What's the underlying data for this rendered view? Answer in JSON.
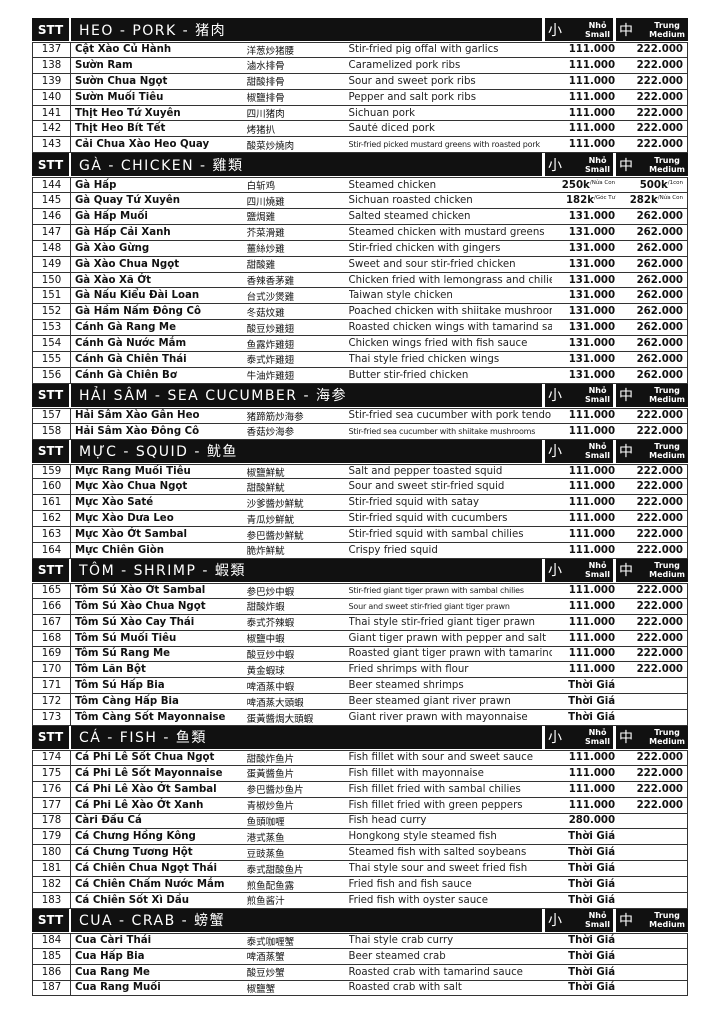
{
  "size_labels": {
    "small_cjk": "小",
    "small_vi": "Nhỏ",
    "small_en": "Small",
    "medium_cjk": "中",
    "medium_vi": "Trung",
    "medium_en": "Medium",
    "stt": "STT"
  },
  "sections": [
    {
      "title": "HEO - PORK - 猪肉",
      "rows": [
        [
          "137",
          "Cật Xào Củ Hành",
          "洋葱炒猪腰",
          "Stir-fried pig offal with garlics",
          "111.000",
          "222.000"
        ],
        [
          "138",
          "Sườn Ram",
          "滷水排骨",
          "Caramelized pork ribs",
          "111.000",
          "222.000"
        ],
        [
          "139",
          "Sườn Chua Ngọt",
          "甜酸排骨",
          "Sour and sweet pork ribs",
          "111.000",
          "222.000"
        ],
        [
          "140",
          "Sườn Muối Tiêu",
          "椒鹽排骨",
          "Pepper and salt pork ribs",
          "111.000",
          "222.000"
        ],
        [
          "141",
          "Thịt Heo Tứ Xuyên",
          "四川猪肉",
          "Sichuan pork",
          "111.000",
          "222.000"
        ],
        [
          "142",
          "Thịt Heo Bít Tết",
          "烤猪扒",
          "Sauté diced pork",
          "111.000",
          "222.000"
        ],
        [
          "143",
          "Cải Chua Xào Heo Quay",
          "酸菜炒燒肉",
          "Stir-fried picked mustard greens with roasted pork",
          "111.000",
          "222.000"
        ]
      ]
    },
    {
      "title": "GÀ - CHICKEN - 雞類",
      "rows": [
        [
          "144",
          "Gà Hấp",
          "白斩鸡",
          "Steamed chicken",
          "250k",
          "500k",
          "/Nửa Con",
          "/1con"
        ],
        [
          "145",
          "Gà Quay Tứ Xuyên",
          "四川燒雞",
          "Sichuan roasted chicken",
          "182k",
          "282k",
          "/Góc Tư",
          "/Nửa Con"
        ],
        [
          "146",
          "Gà Hấp Muối",
          "鹽焗雞",
          "Salted steamed chicken",
          "131.000",
          "262.000"
        ],
        [
          "147",
          "Gà Hấp Cải Xanh",
          "芥菜滑雞",
          "Steamed chicken with mustard greens",
          "131.000",
          "262.000"
        ],
        [
          "148",
          "Gà Xào Gừng",
          "薑絲炒雞",
          "Stir-fried chicken with gingers",
          "131.000",
          "262.000"
        ],
        [
          "149",
          "Gà Xào Chua Ngọt",
          "甜酸雞",
          "Sweet and sour stir-fried chicken",
          "131.000",
          "262.000"
        ],
        [
          "150",
          "Gà Xào Xã Ớt",
          "香辣香茅雞",
          "Chicken fried with lemongrass and chilies",
          "131.000",
          "262.000"
        ],
        [
          "151",
          "Gà Nấu Kiểu Đài Loan",
          "台式沙煲雞",
          "Taiwan style chicken",
          "131.000",
          "262.000"
        ],
        [
          "152",
          "Gà Hầm Nấm Đông Cô",
          "冬菇炆雞",
          "Poached chicken with shiitake mushrooms",
          "131.000",
          "262.000"
        ],
        [
          "153",
          "Cánh Gà Rang Me",
          "酸豆炒雞翅",
          "Roasted chicken wings with tamarind sauce",
          "131.000",
          "262.000"
        ],
        [
          "154",
          "Cánh Gà Nước Mắm",
          "鱼露炸雞翅",
          "Chicken wings fried with fish sauce",
          "131.000",
          "262.000"
        ],
        [
          "155",
          "Cánh Gà Chiên Thái",
          "泰式炸雞翅",
          "Thai style fried chicken wings",
          "131.000",
          "262.000"
        ],
        [
          "156",
          "Cánh Gà Chiên Bơ",
          "牛油炸雞翅",
          "Butter stir-fried chicken",
          "131.000",
          "262.000"
        ]
      ]
    },
    {
      "title": "HẢI SÂM - SEA CUCUMBER - 海参",
      "rows": [
        [
          "157",
          "Hải Sâm Xào Gân Heo",
          "猪蹄筋炒海参",
          "Stir-fried sea cucumber with pork tendon",
          "111.000",
          "222.000"
        ],
        [
          "158",
          "Hải Sâm Xào Đông Cô",
          "香菇炒海参",
          "Stir-fried sea cucumber with shiitake mushrooms",
          "111.000",
          "222.000"
        ]
      ]
    },
    {
      "title": "MỰC - SQUID - 鱿鱼",
      "rows": [
        [
          "159",
          "Mực Rang Muối Tiêu",
          "椒鹽鮮魷",
          "Salt and pepper toasted squid",
          "111.000",
          "222.000"
        ],
        [
          "160",
          "Mực Xào Chua Ngọt",
          "甜酸鮮魷",
          "Sour and sweet stir-fried squid",
          "111.000",
          "222.000"
        ],
        [
          "161",
          "Mực Xào Saté",
          "沙爹醬炒鮮魷",
          "Stir-fried squid with satay",
          "111.000",
          "222.000"
        ],
        [
          "162",
          "Mực Xào Dưa Leo",
          "青瓜炒鮮魷",
          "Stir-fried squid with cucumbers",
          "111.000",
          "222.000"
        ],
        [
          "163",
          "Mực Xào Ớt Sambal",
          "参巴醬炒鮮魷",
          "Stir-fried squid with sambal chilies",
          "111.000",
          "222.000"
        ],
        [
          "164",
          "Mực Chiên Giòn",
          "脆炸鮮魷",
          "Crispy fried squid",
          "111.000",
          "222.000"
        ]
      ]
    },
    {
      "title": "TÔM - SHRIMP - 蝦類",
      "rows": [
        [
          "165",
          "Tôm Sú Xào Ớt Sambal",
          "参巴炒中蝦",
          "Stir-fried giant tiger prawn with sambal chilies",
          "111.000",
          "222.000"
        ],
        [
          "166",
          "Tôm Sú Xào Chua Ngọt",
          "甜酸炸蝦",
          "Sour and sweet stir-fried giant tiger prawn",
          "111.000",
          "222.000"
        ],
        [
          "167",
          "Tôm Sú Xào Cay Thái",
          "泰式芥辣蝦",
          "Thai style stir-fried giant tiger prawn",
          "111.000",
          "222.000"
        ],
        [
          "168",
          "Tôm Sú Muối Tiêu",
          "椒鹽中蝦",
          "Giant tiger prawn with pepper and salt",
          "111.000",
          "222.000"
        ],
        [
          "169",
          "Tôm Sú Rang Me",
          "酸豆炒中蝦",
          "Roasted giant tiger prawn with tamarind",
          "111.000",
          "222.000"
        ],
        [
          "170",
          "Tôm Lăn Bột",
          "黄金蝦球",
          "Fried shrimps with flour",
          "111.000",
          "222.000"
        ],
        [
          "171",
          "Tôm Sú Hấp Bia",
          "啤酒蒸中蝦",
          "Beer steamed shrimps",
          "Thời Giá",
          ""
        ],
        [
          "172",
          "Tôm Càng Hấp Bia",
          "啤酒蒸大頭蝦",
          "Beer steamed giant river prawn",
          "Thời Giá",
          ""
        ],
        [
          "173",
          "Tôm Càng Sốt Mayonnaise",
          "蛋黃醬焗大頭蝦",
          "Giant river prawn with mayonnaise",
          "Thời Giá",
          ""
        ]
      ]
    },
    {
      "title": "CÁ - FISH - 鱼類",
      "rows": [
        [
          "174",
          "Cá Phi Lê Sốt Chua Ngọt",
          "甜酸炸鱼片",
          "Fish fillet with sour and sweet sauce",
          "111.000",
          "222.000"
        ],
        [
          "175",
          "Cá Phi Lê Sốt Mayonnaise",
          "蛋黃醬鱼片",
          "Fish fillet with mayonnaise",
          "111.000",
          "222.000"
        ],
        [
          "176",
          "Cá Phi Lê Xào Ớt Sambal",
          "参巴醬炒鱼片",
          "Fish fillet fried with sambal chilies",
          "111.000",
          "222.000"
        ],
        [
          "177",
          "Cá Phi Lê Xào Ớt Xanh",
          "青椒炒鱼片",
          "Fish fillet fried with green peppers",
          "111.000",
          "222.000"
        ],
        [
          "178",
          "Càri Đầu Cá",
          "鱼頭咖喱",
          "Fish head curry",
          "280.000",
          ""
        ],
        [
          "179",
          "Cá Chưng Hồng Kông",
          "港式蒸鱼",
          "Hongkong style steamed fish",
          "Thời Giá",
          ""
        ],
        [
          "180",
          "Cá Chưng Tương Hột",
          "豆豉蒸鱼",
          "Steamed fish with salted soybeans",
          "Thời Giá",
          ""
        ],
        [
          "181",
          "Cá Chiên Chua Ngọt Thái",
          "泰式甜酸鱼片",
          "Thai style sour and sweet fried fish",
          "Thời Giá",
          ""
        ],
        [
          "182",
          "Cá Chiên Chấm Nước Mắm",
          "煎鱼配鱼露",
          "Fried fish and fish sauce",
          "Thời Giá",
          ""
        ],
        [
          "183",
          "Cá Chiên Sốt Xì Dầu",
          "煎鱼酱汁",
          "Fried fish with oyster sauce",
          "Thời Giá",
          ""
        ]
      ]
    },
    {
      "title": "CUA - CRAB - 螃蟹",
      "rows": [
        [
          "184",
          "Cua Càri Thái",
          "泰式咖喱蟹",
          "Thai style crab curry",
          "Thời Giá",
          ""
        ],
        [
          "185",
          "Cua Hấp Bia",
          "啤酒蒸蟹",
          "Beer steamed crab",
          "Thời Giá",
          ""
        ],
        [
          "186",
          "Cua Rang Me",
          "酸豆炒蟹",
          "Roasted crab with tamarind sauce",
          "Thời Giá",
          ""
        ],
        [
          "187",
          "Cua Rang Muối",
          "椒鹽蟹",
          "Roasted crab with salt",
          "Thời Giá",
          ""
        ]
      ]
    }
  ]
}
